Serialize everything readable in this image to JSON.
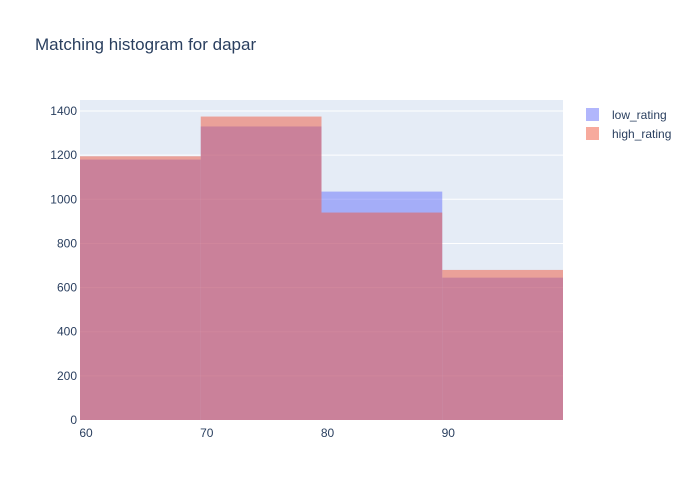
{
  "chart_data": {
    "type": "bar",
    "title": "Matching histogram for dapar",
    "xlabel": "",
    "ylabel": "",
    "bins": [
      [
        60,
        70
      ],
      [
        70,
        80
      ],
      [
        80,
        90
      ],
      [
        90,
        100
      ]
    ],
    "x_ticks": [
      60,
      70,
      80,
      90
    ],
    "xlim": [
      60,
      100
    ],
    "y_ticks": [
      0,
      200,
      400,
      600,
      800,
      1000,
      1200,
      1400
    ],
    "ylim": [
      0,
      1450
    ],
    "grid": true,
    "legend_position": "top-right",
    "series": [
      {
        "name": "low_rating",
        "values": [
          1180,
          1330,
          1035,
          645
        ],
        "color": "#636efa",
        "opacity": 0.5
      },
      {
        "name": "high_rating",
        "values": [
          1195,
          1375,
          940,
          680
        ],
        "color": "#ef553b",
        "opacity": 0.5
      }
    ],
    "colors": {
      "plot_background": "#e5ecf6",
      "grid": "#ffffff",
      "text": "#2a3f5f"
    }
  }
}
